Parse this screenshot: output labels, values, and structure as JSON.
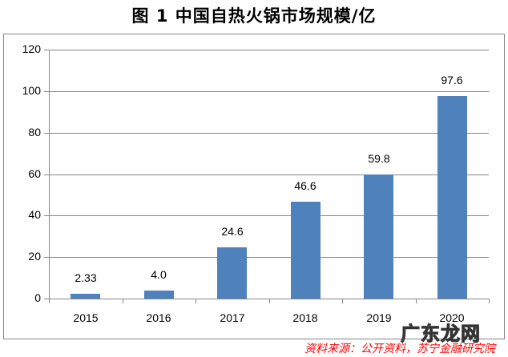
{
  "title": "图 1  中国自热火锅市场规模/亿",
  "source": "资料来源：公开资料，苏宁金融研究院",
  "watermark": "广东龙网",
  "colors": {
    "bar": "#4f81bd",
    "source_text": "#ff0000",
    "gridline": "#868686"
  },
  "chart_data": {
    "type": "bar",
    "title": "图 1  中国自热火锅市场规模/亿",
    "xlabel": "",
    "ylabel": "",
    "categories": [
      "2015",
      "2016",
      "2017",
      "2018",
      "2019",
      "2020"
    ],
    "values": [
      2.33,
      4.0,
      24.6,
      46.6,
      59.8,
      97.6
    ],
    "value_labels": [
      "2.33",
      "4.0",
      "24.6",
      "46.6",
      "59.8",
      "97.6"
    ],
    "ylim": [
      0,
      120
    ],
    "yticks": [
      "0",
      "20",
      "40",
      "60",
      "80",
      "100",
      "120"
    ],
    "grid": true,
    "legend": "none"
  }
}
